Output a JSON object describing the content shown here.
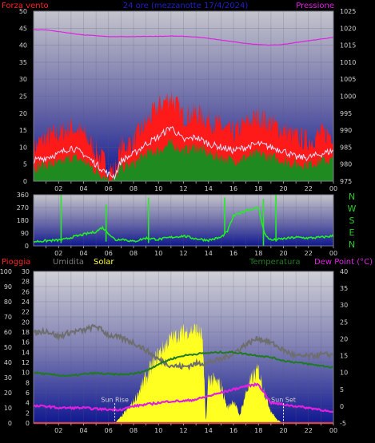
{
  "header": {
    "wind_label": "Forza vento",
    "period": "24 ore (mezzanotte 17/4/2024)",
    "pressure_label": "Pressione"
  },
  "lower_header": {
    "rain_label": "Pioggia",
    "humidity_label": "Umidita",
    "solar_label": "Solar",
    "temperature_label": "Temperatura",
    "dewpoint_label": "Dew Point (°C)"
  },
  "colors": {
    "wind_gust": "#ff1a1a",
    "wind_avg": "#1f8a1f",
    "wind_speed_line": "#e0e0ff",
    "pressure": "#e020e0",
    "direction": "#22ee22",
    "solar": "#ffff22",
    "temperature": "#207a20",
    "humidity": "#6e6e6e",
    "dewpoint": "#e020e0",
    "rain": "#ff2020",
    "compass": "#22cc22"
  },
  "chart_data": [
    {
      "type": "line",
      "panel": "wind_pressure",
      "x_ticks": [
        "02",
        "04",
        "06",
        "08",
        "10",
        "12",
        "14",
        "16",
        "18",
        "20",
        "22",
        "00"
      ],
      "left_axis": {
        "ticks": [
          0,
          5,
          10,
          15,
          20,
          25,
          30,
          35,
          40,
          45,
          50
        ],
        "ylim": [
          0,
          50
        ]
      },
      "right_axis": {
        "ticks": [
          975,
          980,
          985,
          990,
          995,
          1000,
          1005,
          1010,
          1015,
          1020,
          1025
        ],
        "ylim": [
          975,
          1025
        ]
      },
      "series": [
        {
          "key": "gust",
          "x": [
            0,
            1,
            2,
            3,
            4,
            5,
            6,
            6.5,
            7,
            8,
            9,
            10,
            11,
            12,
            13,
            14,
            15,
            16,
            17,
            18,
            19,
            20,
            21,
            22,
            23,
            24
          ],
          "values": [
            10,
            13,
            14,
            16,
            14,
            9,
            4,
            3,
            10,
            12,
            17,
            22,
            25,
            19,
            20,
            18,
            16,
            14,
            17,
            19,
            17,
            15,
            13,
            12,
            14,
            14
          ]
        },
        {
          "key": "avg",
          "x": [
            0,
            1,
            2,
            3,
            4,
            5,
            6,
            6.5,
            7,
            8,
            9,
            10,
            11,
            12,
            13,
            14,
            15,
            16,
            17,
            18,
            19,
            20,
            21,
            22,
            23,
            24
          ],
          "values": [
            4,
            5,
            5,
            7,
            6,
            3,
            1,
            0.5,
            4,
            5,
            8,
            9,
            11,
            9,
            10,
            8,
            7,
            6,
            7,
            8,
            7,
            6,
            5,
            5,
            6,
            6
          ]
        },
        {
          "key": "speed",
          "x": [
            0,
            1,
            2,
            3,
            4,
            5,
            6,
            6.5,
            7,
            8,
            9,
            10,
            11,
            12,
            13,
            14,
            15,
            16,
            17,
            18,
            19,
            20,
            21,
            22,
            23,
            24
          ],
          "values": [
            6,
            7,
            8,
            10,
            8,
            5,
            2,
            1.5,
            6,
            8,
            11,
            13,
            16,
            12,
            13,
            11,
            10,
            9,
            10,
            11,
            10,
            9,
            7,
            7,
            8,
            9
          ]
        },
        {
          "key": "pressure",
          "x": [
            0,
            1,
            2,
            3,
            4,
            5,
            6,
            7,
            8,
            9,
            10,
            11,
            12,
            13,
            14,
            15,
            16,
            17,
            18,
            19,
            20,
            21,
            22,
            23,
            24
          ],
          "values": [
            1019.5,
            1019.5,
            1019,
            1018.5,
            1018,
            1017.8,
            1017.5,
            1017.5,
            1017.5,
            1017.6,
            1017.6,
            1017.7,
            1017.6,
            1017.4,
            1017,
            1016.5,
            1016,
            1015.5,
            1015.2,
            1015,
            1015.2,
            1015.8,
            1016.3,
            1016.8,
            1017.3
          ]
        }
      ]
    },
    {
      "type": "scatter",
      "panel": "wind_direction",
      "x_ticks": [
        "02",
        "04",
        "06",
        "08",
        "10",
        "12",
        "14",
        "16",
        "18",
        "20",
        "22",
        "00"
      ],
      "left_axis": {
        "ticks": [
          0,
          90,
          180,
          270,
          360
        ],
        "ylim": [
          0,
          360
        ]
      },
      "right_axis": {
        "ticks": [
          "N",
          "W",
          "S",
          "E",
          "N"
        ]
      },
      "series": [
        {
          "key": "direction",
          "x": [
            0,
            1,
            2,
            2.5,
            3,
            3.5,
            4,
            5,
            5.5,
            6,
            6.3,
            6.6,
            7,
            7.5,
            8,
            9,
            10,
            11,
            12,
            13,
            14,
            15,
            15.5,
            16,
            17,
            18,
            18.5,
            19,
            20,
            21,
            22,
            23,
            24
          ],
          "values": [
            30,
            35,
            40,
            45,
            60,
            70,
            80,
            100,
            130,
            90,
            60,
            40,
            50,
            40,
            30,
            55,
            45,
            60,
            70,
            50,
            40,
            60,
            100,
            210,
            250,
            270,
            80,
            40,
            50,
            60,
            55,
            60,
            70
          ]
        }
      ]
    },
    {
      "type": "area",
      "panel": "solar_temp",
      "x_ticks": [
        "02",
        "04",
        "06",
        "08",
        "10",
        "12",
        "14",
        "16",
        "18",
        "20",
        "22",
        "00"
      ],
      "left_axis": {
        "ticks": [
          0,
          10,
          20,
          30,
          40,
          50,
          60,
          70,
          80,
          90,
          100
        ],
        "ylim": [
          0,
          100
        ]
      },
      "rain_axis": {
        "ticks": [
          0,
          2,
          4,
          6,
          8,
          10,
          12,
          14,
          16,
          18,
          20,
          22,
          24,
          26,
          28,
          30
        ],
        "ylim": [
          0,
          30
        ]
      },
      "right_axis": {
        "ticks": [
          -5,
          0,
          5,
          10,
          15,
          20,
          25,
          30,
          35,
          40
        ],
        "ylim": [
          -5,
          40
        ]
      },
      "annotations": {
        "sunrise_label": "Sun Rise",
        "sunset_label": "Sun Set"
      },
      "series": [
        {
          "key": "solar",
          "x": [
            6.5,
            7,
            8,
            9,
            10,
            11,
            12,
            13,
            13.5,
            13.8,
            14,
            15,
            15.5,
            16,
            16.5,
            17,
            17.5,
            18,
            18.5,
            19,
            19.5,
            20
          ],
          "values": [
            0,
            4,
            14,
            30,
            46,
            56,
            60,
            62,
            58,
            0,
            30,
            25,
            10,
            15,
            5,
            20,
            30,
            35,
            20,
            8,
            2,
            0
          ]
        },
        {
          "key": "humidity",
          "x": [
            0,
            1,
            2,
            3,
            4,
            5,
            6,
            7,
            8,
            9,
            10,
            11,
            12,
            13,
            14,
            15,
            16,
            17,
            18,
            19,
            20,
            21,
            22,
            23,
            24
          ],
          "values": [
            59,
            61,
            57,
            60,
            61,
            64,
            58,
            56,
            53,
            48,
            42,
            38,
            37,
            39,
            40,
            42,
            46,
            52,
            56,
            53,
            48,
            44,
            44,
            45,
            45
          ]
        },
        {
          "key": "temperature",
          "x": [
            0,
            1,
            2,
            3,
            4,
            5,
            6,
            7,
            8,
            9,
            10,
            11,
            12,
            13,
            14,
            15,
            16,
            17,
            18,
            19,
            20,
            21,
            22,
            23,
            24
          ],
          "values": [
            10,
            9.5,
            9.2,
            9,
            9.5,
            9.8,
            9.5,
            9.4,
            9.6,
            10.5,
            12.5,
            14,
            15,
            15.5,
            15.8,
            16,
            16,
            15.5,
            15,
            14.5,
            13.5,
            13,
            12.5,
            12,
            11.5
          ]
        },
        {
          "key": "dewpoint",
          "x": [
            0,
            1,
            2,
            3,
            4,
            5,
            6,
            7,
            8,
            9,
            10,
            11,
            12,
            13,
            14,
            15,
            16,
            17,
            18,
            19,
            20,
            21,
            22,
            23,
            24
          ],
          "values": [
            0,
            0,
            -0.5,
            -0.5,
            -0.5,
            -0.8,
            -1,
            -1,
            0,
            0.5,
            1,
            1.5,
            1.5,
            2,
            3,
            4,
            5,
            6,
            6.5,
            1,
            0.5,
            0,
            -0.5,
            -1,
            -2
          ]
        },
        {
          "key": "rain",
          "x": [
            0,
            24
          ],
          "values": [
            0,
            0
          ]
        }
      ]
    }
  ]
}
